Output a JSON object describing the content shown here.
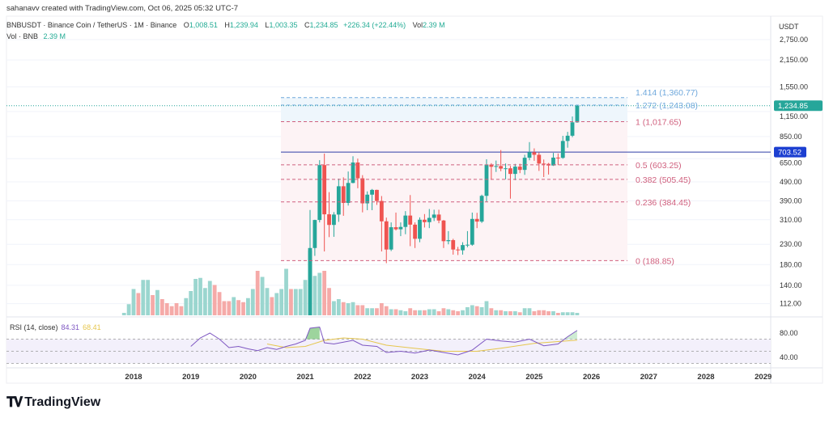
{
  "credit": "sahanavv created with TradingView.com, Oct 06, 2025 05:32 UTC-7",
  "legend": {
    "symbol": "BNBUSDT · Binance Coin / TetherUS · 1M · Binance",
    "open_label": "O",
    "open": "1,008.51",
    "high_label": "H",
    "high": "1,239.94",
    "low_label": "L",
    "low": "1,003.35",
    "close_label": "C",
    "close": "1,234.85",
    "change": "+226.34 (+22.44%)",
    "vol_label": "Vol",
    "vol": "2.39 M",
    "vol_row_label": "Vol · BNB",
    "vol_row_value": "2.39 M"
  },
  "rsi_legend": {
    "label": "RSI (14, close)",
    "rsi": "84.31",
    "ma": "68.41"
  },
  "price_axis": {
    "unit": "USDT",
    "ticks": [
      "2,750.00",
      "2,150.00",
      "1,550.00",
      "1,150.00",
      "850.00",
      "650.00",
      "490.00",
      "390.00",
      "310.00",
      "230.00",
      "180.00",
      "140.00",
      "112.00"
    ],
    "last_price_label": "1,234.85",
    "hline_label": "703.52"
  },
  "rsi_axis": {
    "ticks": [
      "80.00",
      "40.00"
    ]
  },
  "time_axis": {
    "ticks": [
      "2018",
      "2019",
      "2020",
      "2021",
      "2022",
      "2023",
      "2024",
      "2025",
      "2026",
      "2027",
      "2028",
      "2029"
    ]
  },
  "fib_levels": [
    {
      "label": "1.414 (1,360.77)",
      "price": 1360.77,
      "color": "#6fa8dc"
    },
    {
      "label": "1.272 (1,243.08)",
      "price": 1243.08,
      "color": "#6fa8dc"
    },
    {
      "label": "1 (1,017.65)",
      "price": 1017.65,
      "color": "#d0607e"
    },
    {
      "label": "0.5 (603.25)",
      "price": 603.25,
      "color": "#d0607e"
    },
    {
      "label": "0.382 (505.45)",
      "price": 505.45,
      "color": "#d0607e"
    },
    {
      "label": "0.236 (384.45)",
      "price": 384.45,
      "color": "#d0607e"
    },
    {
      "label": "0 (188.85)",
      "price": 188.85,
      "color": "#d0607e"
    }
  ],
  "colors": {
    "up": "#26a69a",
    "down": "#ef5350",
    "hline": "#2f3ea8",
    "rsi": "#7e57c2",
    "rsi_ma": "#e6c64d",
    "last_price_bg": "#26a69a",
    "hline_bg": "#1c3fd1"
  },
  "brand": "TradingView",
  "chart_data": {
    "type": "candlestick",
    "y_scale": "log",
    "interval": "1M",
    "hline": 703.52,
    "candles_start": "2021-02",
    "candles": [
      [
        43.8,
        348.7,
        43,
        220
      ],
      [
        220,
        310,
        200,
        309
      ],
      [
        309,
        638,
        300,
        601
      ],
      [
        601,
        691,
        211,
        331
      ],
      [
        331,
        433,
        251,
        291
      ],
      [
        291,
        340,
        252,
        330
      ],
      [
        330,
        510,
        302,
        465
      ],
      [
        465,
        518,
        325,
        380
      ],
      [
        380,
        556,
        368,
        484
      ],
      [
        484,
        669,
        482,
        620
      ],
      [
        620,
        650,
        454,
        512
      ],
      [
        512,
        532,
        339,
        378
      ],
      [
        378,
        437,
        348,
        420
      ],
      [
        420,
        450,
        348,
        445
      ],
      [
        445,
        446,
        371,
        389
      ],
      [
        389,
        413,
        211,
        304
      ],
      [
        304,
        318,
        183,
        216
      ],
      [
        216,
        300,
        212,
        283
      ],
      [
        283,
        338,
        272,
        276
      ],
      [
        276,
        300,
        254,
        284
      ],
      [
        284,
        344,
        260,
        326
      ],
      [
        326,
        418,
        225,
        292
      ],
      [
        292,
        300,
        220,
        246
      ],
      [
        246,
        319,
        236,
        310
      ],
      [
        310,
        332,
        282,
        301
      ],
      [
        301,
        353,
        280,
        317
      ],
      [
        317,
        350,
        305,
        330
      ],
      [
        330,
        350,
        297,
        307
      ],
      [
        307,
        309,
        220,
        239
      ],
      [
        239,
        270,
        230,
        242
      ],
      [
        242,
        246,
        203,
        216
      ],
      [
        216,
        223,
        202,
        214
      ],
      [
        214,
        236,
        203,
        228
      ],
      [
        228,
        270,
        222,
        229
      ],
      [
        229,
        338,
        226,
        313
      ],
      [
        313,
        337,
        280,
        303
      ],
      [
        303,
        420,
        298,
        414
      ],
      [
        414,
        645,
        386,
        605
      ],
      [
        605,
        615,
        504,
        589
      ],
      [
        589,
        635,
        553,
        594
      ],
      [
        594,
        721,
        558,
        576
      ],
      [
        576,
        613,
        506,
        578
      ],
      [
        578,
        595,
        400,
        540
      ],
      [
        540,
        610,
        501,
        590
      ],
      [
        590,
        611,
        545,
        567
      ],
      [
        567,
        681,
        534,
        657
      ],
      [
        657,
        794,
        637,
        702
      ],
      [
        702,
        736,
        633,
        681
      ],
      [
        681,
        700,
        560,
        612
      ],
      [
        612,
        643,
        520,
        610
      ],
      [
        610,
        617,
        536,
        598
      ],
      [
        598,
        697,
        595,
        658
      ],
      [
        658,
        692,
        601,
        656
      ],
      [
        656,
        857,
        649,
        805
      ],
      [
        805,
        899,
        742,
        858
      ],
      [
        858,
        1083,
        843,
        1009
      ],
      [
        1008.51,
        1239.94,
        1003.35,
        1234.85
      ]
    ],
    "volume_start": "2017-11",
    "volume_m": [
      2.4,
      11,
      26,
      22,
      35,
      35,
      20,
      25,
      16,
      12,
      9,
      12,
      9,
      17,
      24,
      36,
      37,
      27,
      34,
      30,
      23,
      14,
      14,
      18,
      15,
      13,
      17,
      26,
      44,
      38,
      27,
      18,
      22,
      26,
      46,
      26,
      26,
      26,
      35,
      64,
      39,
      42,
      44,
      27,
      14,
      16,
      13,
      12,
      13,
      10,
      10,
      7,
      7,
      7,
      12,
      9,
      6,
      6,
      5,
      4,
      7,
      5,
      5,
      5,
      6,
      6,
      4,
      7,
      6,
      5,
      4,
      5,
      8,
      10,
      9,
      8,
      14,
      7,
      5,
      5,
      4,
      4,
      4,
      3,
      7,
      7,
      4,
      5,
      5,
      4,
      4,
      2.4,
      3,
      3,
      3,
      2.39
    ],
    "volume_up_early": [
      1,
      1,
      1,
      0,
      1,
      1,
      0,
      1,
      0,
      0,
      0,
      0,
      0,
      1,
      1,
      1,
      1,
      1,
      1,
      0,
      0,
      0,
      0,
      1,
      0,
      0,
      1,
      1,
      0,
      1,
      1,
      0,
      1,
      1,
      1,
      0,
      1,
      1,
      1
    ],
    "rsi": {
      "label": "RSI (14, close)",
      "levels": [
        70,
        50,
        30
      ],
      "line": [
        [
          "2019-01",
          58
        ],
        [
          "2019-03",
          72
        ],
        [
          "2019-05",
          80
        ],
        [
          "2019-07",
          70
        ],
        [
          "2019-09",
          56
        ],
        [
          "2019-11",
          58
        ],
        [
          "2020-01",
          54
        ],
        [
          "2020-03",
          51
        ],
        [
          "2020-05",
          56
        ],
        [
          "2020-07",
          53
        ],
        [
          "2020-09",
          58
        ],
        [
          "2020-11",
          62
        ],
        [
          "2021-01",
          68
        ],
        [
          "2021-02",
          88
        ],
        [
          "2021-04",
          90
        ],
        [
          "2021-05",
          64
        ],
        [
          "2021-07",
          62
        ],
        [
          "2021-09",
          65
        ],
        [
          "2021-11",
          68
        ],
        [
          "2022-01",
          60
        ],
        [
          "2022-04",
          58
        ],
        [
          "2022-06",
          48
        ],
        [
          "2022-09",
          50
        ],
        [
          "2022-12",
          47
        ],
        [
          "2023-03",
          52
        ],
        [
          "2023-06",
          48
        ],
        [
          "2023-09",
          44
        ],
        [
          "2023-12",
          52
        ],
        [
          "2024-03",
          70
        ],
        [
          "2024-06",
          67
        ],
        [
          "2024-09",
          65
        ],
        [
          "2024-12",
          70
        ],
        [
          "2025-03",
          59
        ],
        [
          "2025-06",
          62
        ],
        [
          "2025-08",
          74
        ],
        [
          "2025-10",
          84.31
        ]
      ],
      "ma": [
        [
          "2020-05",
          62
        ],
        [
          "2020-09",
          56
        ],
        [
          "2021-01",
          58
        ],
        [
          "2021-05",
          68
        ],
        [
          "2021-09",
          72
        ],
        [
          "2022-01",
          70
        ],
        [
          "2022-06",
          60
        ],
        [
          "2023-01",
          54
        ],
        [
          "2023-06",
          50
        ],
        [
          "2024-01",
          50
        ],
        [
          "2024-06",
          55
        ],
        [
          "2025-01",
          63
        ],
        [
          "2025-06",
          66
        ],
        [
          "2025-10",
          68.41
        ]
      ]
    }
  }
}
